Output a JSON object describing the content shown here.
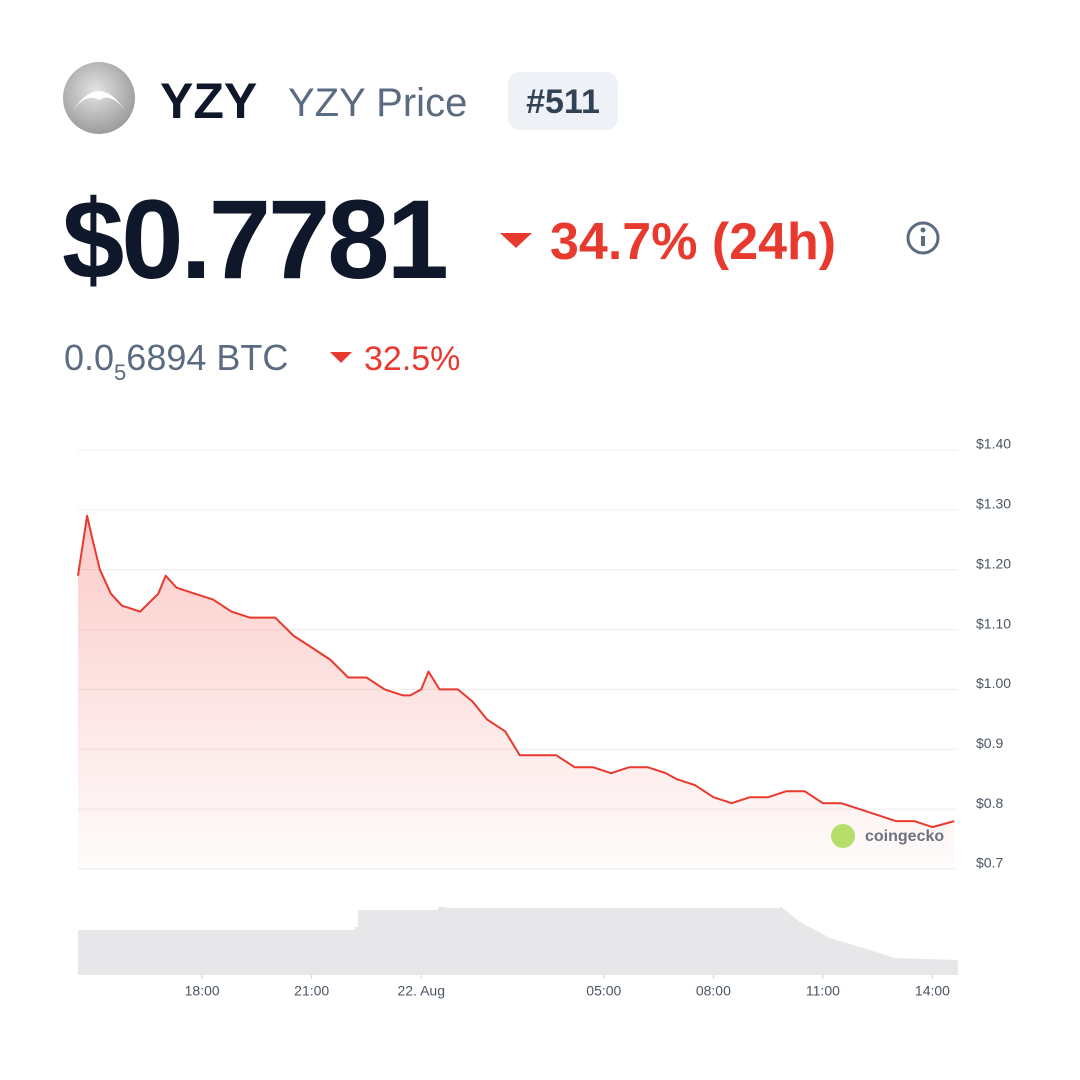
{
  "header": {
    "symbol": "YZY",
    "name": "YZY Price",
    "rank": "#511"
  },
  "price": {
    "usd": "$0.7781",
    "change_24h": "34.7% (24h)",
    "btc_lead": "0.0",
    "btc_zeros": "5",
    "btc_rest": "6894 BTC",
    "btc_change": "32.5%"
  },
  "watermark": "coingecko",
  "chart_data": {
    "type": "line",
    "color": "#e8392f",
    "grid": true,
    "x": [
      14.6,
      14.85,
      15.0,
      15.2,
      15.5,
      15.8,
      16.3,
      16.8,
      17.0,
      17.3,
      17.8,
      18.3,
      18.8,
      19.3,
      20.0,
      20.5,
      21.0,
      21.5,
      22.0,
      22.5,
      23.0,
      23.5,
      23.7,
      24.0,
      24.2,
      24.5,
      25.0,
      25.4,
      25.8,
      26.3,
      26.7,
      27.2,
      27.7,
      28.2,
      28.7,
      29.2,
      29.7,
      30.2,
      30.7,
      31.0,
      31.5,
      32.0,
      32.5,
      33.0,
      33.5,
      34.0,
      34.5,
      35.0,
      35.5,
      36.0,
      36.5,
      37.0,
      37.5,
      38.0,
      38.6
    ],
    "values": [
      1.19,
      1.29,
      1.25,
      1.2,
      1.16,
      1.14,
      1.13,
      1.16,
      1.19,
      1.17,
      1.16,
      1.15,
      1.13,
      1.12,
      1.12,
      1.09,
      1.07,
      1.05,
      1.02,
      1.02,
      1.0,
      0.99,
      0.99,
      1.0,
      1.03,
      1.0,
      1.0,
      0.98,
      0.95,
      0.93,
      0.89,
      0.89,
      0.89,
      0.87,
      0.87,
      0.86,
      0.87,
      0.87,
      0.86,
      0.85,
      0.84,
      0.82,
      0.81,
      0.82,
      0.82,
      0.83,
      0.83,
      0.81,
      0.81,
      0.8,
      0.79,
      0.78,
      0.78,
      0.77,
      0.78
    ],
    "xlim": [
      14.6,
      38.7
    ],
    "xticks": [
      {
        "value": 18,
        "label": "18:00"
      },
      {
        "value": 21,
        "label": "21:00"
      },
      {
        "value": 24,
        "label": "22. Aug"
      },
      {
        "value": 29,
        "label": "05:00"
      },
      {
        "value": 32,
        "label": "08:00"
      },
      {
        "value": 35,
        "label": "11:00"
      },
      {
        "value": 38,
        "label": "14:00"
      }
    ],
    "ylim": [
      0.7,
      1.4
    ],
    "yticks": [
      {
        "value": 1.4,
        "label": "$1.40"
      },
      {
        "value": 1.3,
        "label": "$1.30"
      },
      {
        "value": 1.2,
        "label": "$1.20"
      },
      {
        "value": 1.1,
        "label": "$1.10"
      },
      {
        "value": 1.0,
        "label": "$1.00"
      },
      {
        "value": 0.9,
        "label": "$0.9"
      },
      {
        "value": 0.8,
        "label": "$0.8"
      },
      {
        "value": 0.7,
        "label": "$0.7"
      }
    ]
  }
}
